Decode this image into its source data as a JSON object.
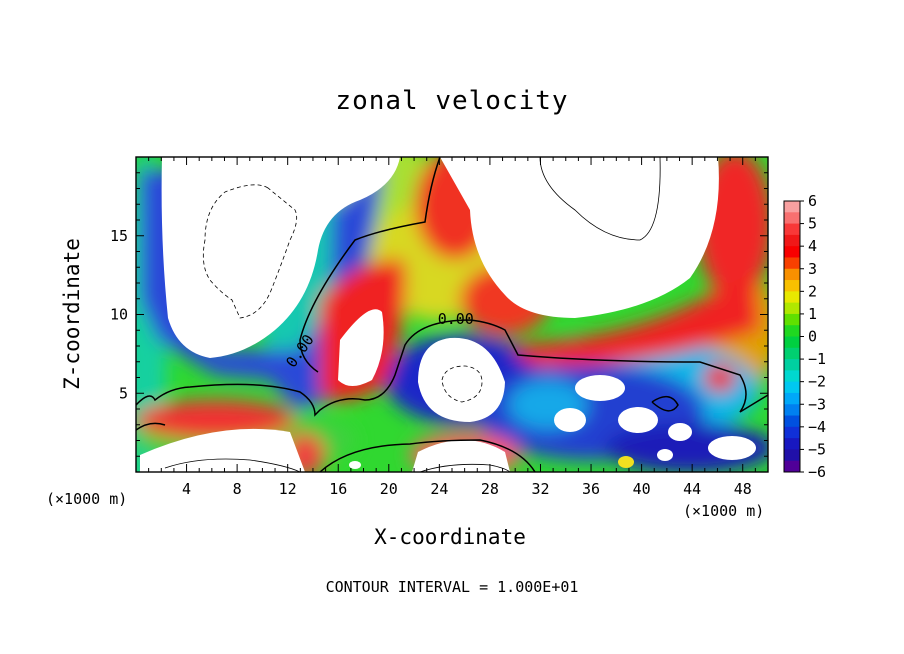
{
  "chart_data": {
    "type": "heatmap",
    "title": "zonal velocity",
    "xlabel": "X-coordinate",
    "ylabel": "Z-coordinate",
    "x_unit_left": "(×1000 m)",
    "x_unit_right": "(×1000 m)",
    "xlim": [
      0,
      50
    ],
    "ylim": [
      0,
      20
    ],
    "xticks": [
      4,
      8,
      12,
      16,
      20,
      24,
      28,
      32,
      36,
      40,
      44,
      48
    ],
    "yticks": [
      5,
      10,
      15
    ],
    "colorbar": {
      "min": -6,
      "max": 6,
      "ticks": [
        "6",
        "5",
        "4",
        "3",
        "2",
        "1",
        "0",
        "−1",
        "−2",
        "−3",
        "−4",
        "−5",
        "−6"
      ]
    },
    "contour_labels": [
      {
        "text": "0.00",
        "x": 13.3,
        "y": 7.5,
        "angle": -55
      },
      {
        "text": "0.00",
        "x": 25.3,
        "y": 9.4,
        "angle": 0
      }
    ],
    "contour_interval": "CONTOUR INTERVAL = 1.000E+01",
    "grid": false,
    "legend": "right"
  }
}
